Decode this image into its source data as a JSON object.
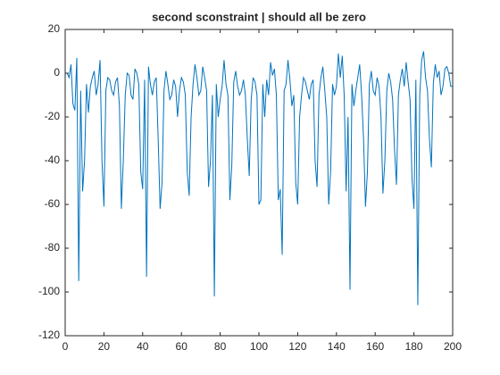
{
  "chart_data": {
    "type": "line",
    "title": "second sconstraint | should all be zero",
    "x": [
      1,
      2,
      3,
      4,
      5,
      6,
      7,
      8,
      9,
      10,
      11,
      12,
      13,
      14,
      15,
      16,
      17,
      18,
      19,
      20,
      21,
      22,
      23,
      24,
      25,
      26,
      27,
      28,
      29,
      30,
      31,
      32,
      33,
      34,
      35,
      36,
      37,
      38,
      39,
      40,
      41,
      42,
      43,
      44,
      45,
      46,
      47,
      48,
      49,
      50,
      51,
      52,
      53,
      54,
      55,
      56,
      57,
      58,
      59,
      60,
      61,
      62,
      63,
      64,
      65,
      66,
      67,
      68,
      69,
      70,
      71,
      72,
      73,
      74,
      75,
      76,
      77,
      78,
      79,
      80,
      81,
      82,
      83,
      84,
      85,
      86,
      87,
      88,
      89,
      90,
      91,
      92,
      93,
      94,
      95,
      96,
      97,
      98,
      99,
      100,
      101,
      102,
      103,
      104,
      105,
      106,
      107,
      108,
      109,
      110,
      111,
      112,
      113,
      114,
      115,
      116,
      117,
      118,
      119,
      120,
      121,
      122,
      123,
      124,
      125,
      126,
      127,
      128,
      129,
      130,
      131,
      132,
      133,
      134,
      135,
      136,
      137,
      138,
      139,
      140,
      141,
      142,
      143,
      144,
      145,
      146,
      147,
      148,
      149,
      150,
      151,
      152,
      153,
      154,
      155,
      156,
      157,
      158,
      159,
      160,
      161,
      162,
      163,
      164,
      165,
      166,
      167,
      168,
      169,
      170,
      171,
      172,
      173,
      174,
      175,
      176,
      177,
      178,
      179,
      180,
      181,
      182,
      183,
      184,
      185,
      186,
      187,
      188,
      189,
      190,
      191,
      192,
      193,
      194,
      195,
      196,
      197,
      198,
      199,
      200
    ],
    "series": [
      {
        "color": "#0072bd",
        "values": [
          0,
          -2,
          4,
          -14,
          -17,
          7,
          -95,
          -8,
          -54,
          -40,
          -5,
          -18,
          -6,
          -2,
          1,
          -10,
          -5,
          6,
          -40,
          -61,
          -8,
          -2,
          -3,
          -8,
          -10,
          -4,
          -2,
          -15,
          -62,
          -40,
          -10,
          0,
          -1,
          -10,
          -12,
          2,
          0,
          -5,
          -45,
          -53,
          -3,
          -93,
          3,
          -5,
          -10,
          -4,
          -2,
          -30,
          -62,
          -50,
          -8,
          1,
          -5,
          -12,
          -10,
          -3,
          -6,
          -20,
          -8,
          -2,
          -4,
          -10,
          -45,
          -56,
          -20,
          -5,
          4,
          -2,
          -10,
          -8,
          3,
          -2,
          -8,
          -52,
          -40,
          -10,
          -102,
          -5,
          -20,
          -12,
          -6,
          6,
          -5,
          -10,
          -58,
          -42,
          -4,
          1,
          -6,
          -10,
          -8,
          -3,
          -10,
          -30,
          -47,
          -12,
          -2,
          -4,
          -10,
          -60,
          -58,
          -5,
          -20,
          -3,
          -10,
          5,
          -1,
          2,
          -10,
          -58,
          -53,
          -83,
          -8,
          -5,
          6,
          -3,
          -15,
          -10,
          -50,
          -60,
          -20,
          -10,
          -2,
          -4,
          -8,
          -12,
          -5,
          -3,
          -40,
          -52,
          -10,
          -2,
          3,
          -8,
          -20,
          -60,
          -45,
          -5,
          -10,
          -6,
          9,
          -2,
          8,
          -10,
          -54,
          -20,
          -99,
          -5,
          -15,
          -8,
          -2,
          4,
          -10,
          -30,
          -61,
          -45,
          -5,
          1,
          -8,
          -10,
          -2,
          -6,
          -20,
          -55,
          -40,
          -8,
          0,
          -4,
          -12,
          -35,
          -51,
          -10,
          -3,
          2,
          -6,
          5,
          -4,
          -12,
          -48,
          -62,
          -3,
          -106,
          -10,
          6,
          10,
          -2,
          -8,
          -30,
          -43,
          -5,
          4,
          -2,
          1,
          -10,
          -6,
          2,
          3,
          0,
          -6,
          -6
        ]
      }
    ],
    "xlim": [
      0,
      200
    ],
    "xticks": [
      0,
      20,
      40,
      60,
      80,
      100,
      120,
      140,
      160,
      180,
      200
    ],
    "ylim": [
      -120,
      20
    ],
    "yticks": [
      -120,
      -100,
      -80,
      -60,
      -40,
      -20,
      0,
      20
    ]
  }
}
